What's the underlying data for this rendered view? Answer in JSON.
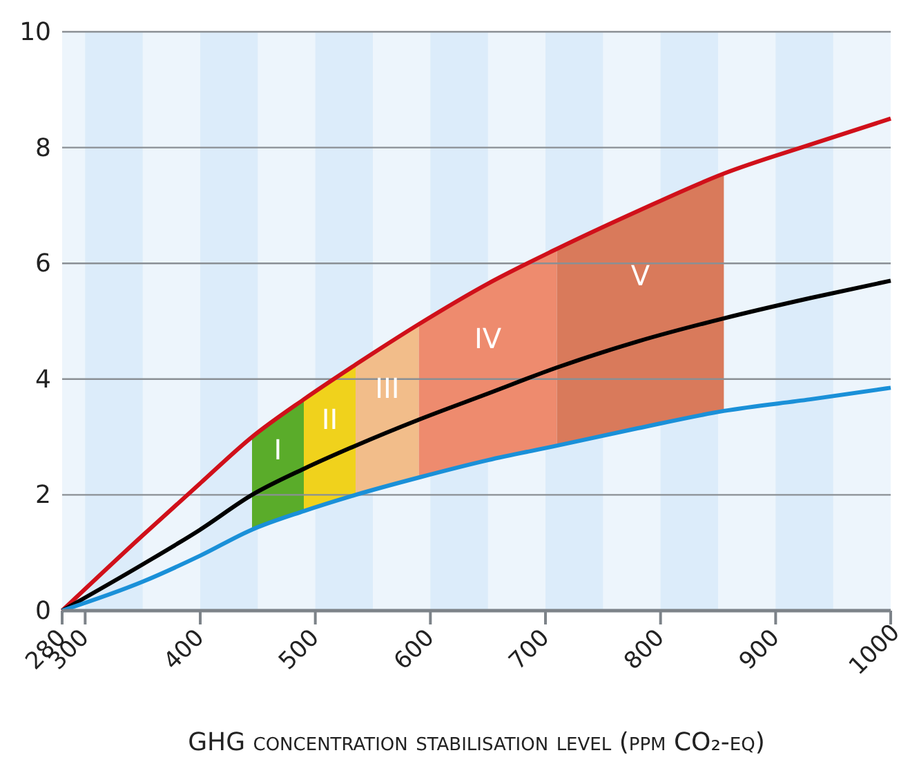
{
  "chart_data": {
    "type": "line",
    "xlabel": "GHG concentration stabilisation level (ppm CO₂-eq)",
    "xlim": [
      280,
      1000
    ],
    "xticks": [
      280,
      300,
      400,
      500,
      600,
      700,
      800,
      900,
      1000
    ],
    "ylim": [
      0,
      10
    ],
    "yticks": [
      0,
      2,
      4,
      6,
      8,
      10
    ],
    "grid": "y",
    "bands": [
      {
        "axis": "x",
        "from": 300,
        "to": 350,
        "color": "#dcecfa"
      },
      {
        "axis": "x",
        "from": 400,
        "to": 450,
        "color": "#dcecfa"
      },
      {
        "axis": "x",
        "from": 500,
        "to": 550,
        "color": "#dcecfa"
      },
      {
        "axis": "x",
        "from": 600,
        "to": 650,
        "color": "#dcecfa"
      },
      {
        "axis": "x",
        "from": 700,
        "to": 750,
        "color": "#dcecfa"
      },
      {
        "axis": "x",
        "from": 800,
        "to": 850,
        "color": "#dcecfa"
      },
      {
        "axis": "x",
        "from": 900,
        "to": 950,
        "color": "#dcecfa"
      },
      {
        "axis": "x",
        "from": 445,
        "to": 490,
        "label": "I",
        "color": "#5aac2a"
      },
      {
        "axis": "x",
        "from": 490,
        "to": 535,
        "label": "II",
        "color": "#f0d21c"
      },
      {
        "axis": "x",
        "from": 535,
        "to": 590,
        "label": "III",
        "color": "#f2bd8a"
      },
      {
        "axis": "x",
        "from": 590,
        "to": 710,
        "label": "IV",
        "color": "#ee8b6e"
      },
      {
        "axis": "x",
        "from": 710,
        "to": 855,
        "label": "V",
        "color": "#d97a5b"
      }
    ],
    "series": [
      {
        "color": "#d0101a",
        "x": [
          280,
          350,
          400,
          445,
          490,
          535,
          590,
          650,
          710,
          780,
          855,
          930,
          1000
        ],
        "values": [
          0,
          1.3,
          2.2,
          3.0,
          3.65,
          4.25,
          4.95,
          5.65,
          6.25,
          6.9,
          7.55,
          8.05,
          8.5
        ]
      },
      {
        "color": "#000000",
        "x": [
          280,
          350,
          400,
          445,
          490,
          535,
          590,
          650,
          710,
          780,
          855,
          930,
          1000
        ],
        "values": [
          0,
          0.8,
          1.4,
          2.0,
          2.45,
          2.85,
          3.3,
          3.75,
          4.2,
          4.65,
          5.05,
          5.4,
          5.7
        ]
      },
      {
        "color": "#1a90d8",
        "x": [
          280,
          350,
          400,
          445,
          490,
          535,
          590,
          650,
          710,
          780,
          855,
          930,
          1000
        ],
        "values": [
          0,
          0.5,
          0.95,
          1.4,
          1.72,
          2.0,
          2.3,
          2.6,
          2.85,
          3.15,
          3.45,
          3.65,
          3.85
        ]
      }
    ]
  }
}
